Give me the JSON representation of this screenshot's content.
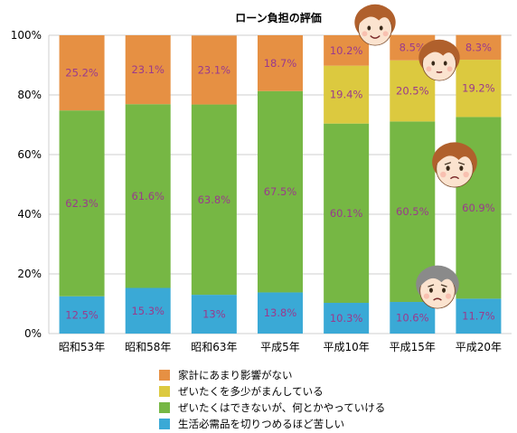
{
  "chart_data": {
    "type": "bar",
    "stacked": true,
    "title": "ローン負担の評価",
    "categories": [
      "昭和53年",
      "昭和58年",
      "昭和63年",
      "平成5年",
      "平成10年",
      "平成15年",
      "平成20年"
    ],
    "ylim": [
      0,
      100
    ],
    "yticks": [
      "0%",
      "20%",
      "40%",
      "60%",
      "80%",
      "100%"
    ],
    "series": [
      {
        "name": "生活必需品を切りつめるほど苦しい",
        "color": "#3aa9d6",
        "values": [
          12.5,
          15.3,
          13,
          13.8,
          10.3,
          10.6,
          11.7
        ],
        "labels": [
          "12.5%",
          "15.3%",
          "13%",
          "13.8%",
          "10.3%",
          "10.6%",
          "11.7%"
        ]
      },
      {
        "name": "ぜいたくはできないが、何とかやっていける",
        "color": "#76b744",
        "values": [
          62.3,
          61.6,
          63.8,
          67.5,
          60.1,
          60.5,
          60.9
        ],
        "labels": [
          "62.3%",
          "61.6%",
          "63.8%",
          "67.5%",
          "60.1%",
          "60.5%",
          "60.9%"
        ]
      },
      {
        "name": "ぜいたくを多少がまんしている",
        "color": "#dcc93f",
        "values": [
          0,
          0,
          0,
          0,
          19.4,
          20.5,
          19.2
        ],
        "labels": [
          "",
          "",
          "",
          "",
          "19.4%",
          "20.5%",
          "19.2%"
        ]
      },
      {
        "name": "家計にあまり影響がない",
        "color": "#e69043",
        "values": [
          25.2,
          23.1,
          23.1,
          18.7,
          10.2,
          8.5,
          8.3
        ],
        "labels": [
          "25.2%",
          "23.1%",
          "23.1%",
          "18.7%",
          "10.2%",
          "8.5%",
          "8.3%"
        ]
      }
    ],
    "legend": {
      "placement": "bottom",
      "order": [
        3,
        2,
        1,
        0
      ]
    },
    "decorations": [
      "face-icon-smiling",
      "face-icon-calm",
      "face-icon-worried",
      "face-icon-distressed"
    ]
  }
}
